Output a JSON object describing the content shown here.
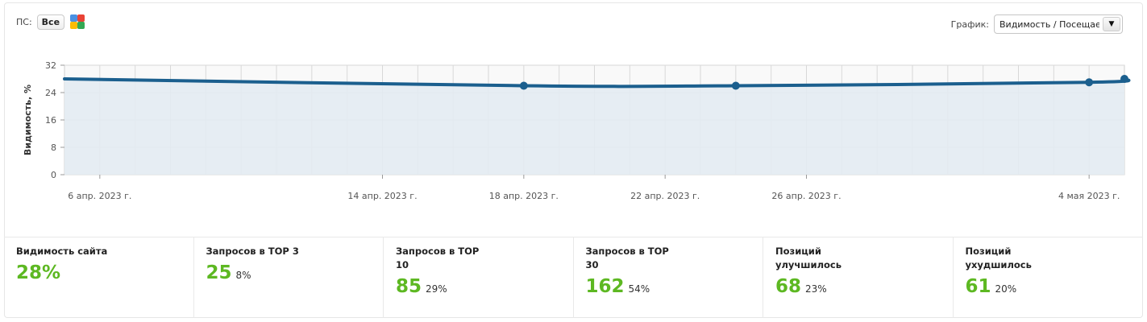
{
  "header": {
    "ps_label": "ПС:",
    "ps_all_button": "Все",
    "ps_icon": "search-engines-icon",
    "graph_label": "График:",
    "graph_select_value": "Видимость / Посещаемость"
  },
  "chart_data": {
    "type": "line",
    "ylabel": "Видимость, %",
    "ylim": [
      0,
      32
    ],
    "yticks": [
      "0",
      "8",
      "16",
      "24",
      "32"
    ],
    "x_tick_labels": [
      "6 апр. 2023 г.",
      "14 апр. 2023 г.",
      "18 апр. 2023 г.",
      "22 апр. 2023 г.",
      "26 апр. 2023 г.",
      "4 мая 2023 г."
    ],
    "x_tick_dates": [
      "2023-04-06",
      "2023-04-14",
      "2023-04-18",
      "2023-04-22",
      "2023-04-26",
      "2023-05-04"
    ],
    "x_range": [
      "2023-04-05",
      "2023-05-05"
    ],
    "grid": true,
    "colors": {
      "line": "#1b5f8e",
      "fill": "#e3ebf2",
      "plot_bg": "#f9f9f9",
      "grid": "#d8d8d8"
    },
    "series": [
      {
        "x": [
          "2023-04-05",
          "2023-04-18",
          "2023-04-24",
          "2023-05-04",
          "2023-05-05"
        ],
        "values": [
          28,
          26,
          26,
          27,
          28
        ],
        "markers": [
          false,
          true,
          true,
          true,
          true
        ]
      }
    ]
  },
  "stats": [
    {
      "title": "Видимость сайта",
      "value": "28%",
      "percent": ""
    },
    {
      "title": "Запросов в ТОР 3",
      "value": "25",
      "percent": "8%"
    },
    {
      "title": "Запросов в ТОР 10",
      "value": "85",
      "percent": "29%"
    },
    {
      "title": "Запросов в ТОР 30",
      "value": "162",
      "percent": "54%"
    },
    {
      "title": "Позиций улучшилось",
      "value": "68",
      "percent": "23%"
    },
    {
      "title": "Позиций ухудшилось",
      "value": "61",
      "percent": "20%"
    }
  ]
}
